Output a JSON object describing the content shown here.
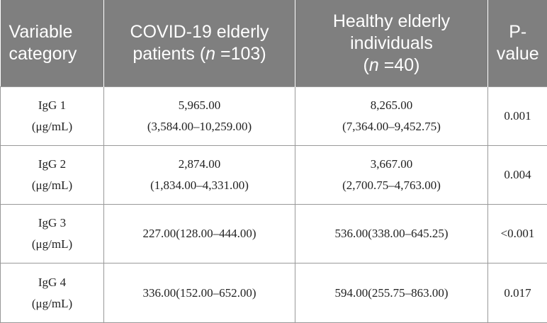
{
  "header": {
    "col1": [
      "Variable",
      "category"
    ],
    "col2": {
      "line1": "COVID-19 elderly",
      "line2_pre": "patients (",
      "n": "n",
      "line2_post": " =103)"
    },
    "col3": {
      "line1": "Healthy elderly",
      "line2": "individuals",
      "line3_pre": "(",
      "n": "n",
      "line3_post": " =40)"
    },
    "col4": [
      "P-",
      "value"
    ]
  },
  "rows": [
    {
      "var": [
        "IgG 1",
        "(μg/mL)"
      ],
      "covid": [
        "5,965.00",
        "(3,584.00–10,259.00)"
      ],
      "healthy": [
        "8,265.00",
        "(7,364.00–9,452.75)"
      ],
      "p": "0.001"
    },
    {
      "var": [
        "IgG 2",
        "(μg/mL)"
      ],
      "covid": [
        "2,874.00",
        "(1,834.00–4,331.00)"
      ],
      "healthy": [
        "3,667.00",
        "(2,700.75–4,763.00)"
      ],
      "p": "0.004"
    },
    {
      "var": [
        "IgG 3",
        "(μg/mL)"
      ],
      "covid": [
        "227.00(128.00–444.00)"
      ],
      "healthy": [
        "536.00(338.00–645.25)"
      ],
      "p": "<0.001"
    },
    {
      "var": [
        "IgG 4",
        "(μg/mL)"
      ],
      "covid": [
        "336.00(152.00–652.00)"
      ],
      "healthy": [
        "594.00(255.75–863.00)"
      ],
      "p": "0.017"
    }
  ]
}
